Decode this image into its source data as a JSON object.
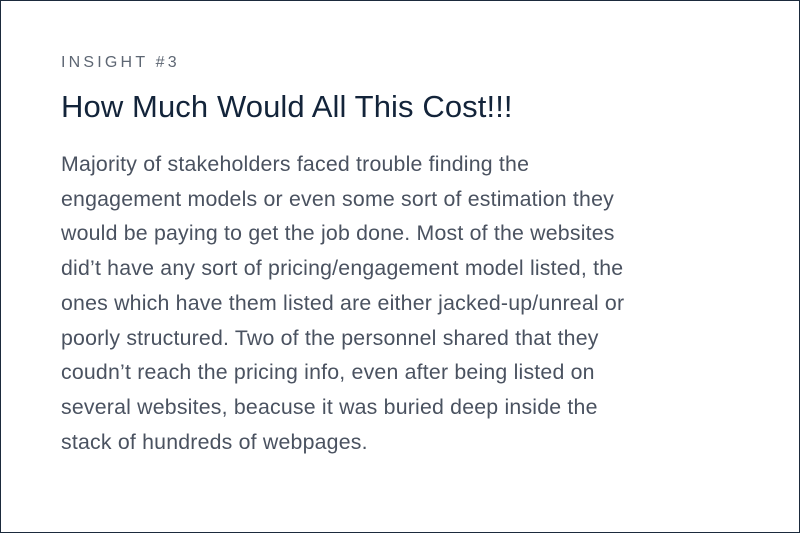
{
  "insight": {
    "label": "INSIGHT #3",
    "title": "How Much Would All This Cost!!!",
    "body_lines": [
      "Majority of stakeholders faced trouble finding the",
      "engagement models or even some sort of estimation they",
      "would be paying to get the job done. Most of the websites",
      "did’t have any sort of pricing/engagement model listed, the",
      "ones which have them listed are either jacked-up/unreal or",
      "poorly structured. Two of the personnel shared that they",
      "coudn’t reach the pricing info, even after being listed on",
      "several websites, beacuse it was buried deep inside the",
      "stack of hundreds of webpages."
    ]
  },
  "colors": {
    "border": "#1b2a3c",
    "title": "#13243a",
    "label": "#5d6673",
    "body": "#4a5260",
    "background": "#ffffff"
  }
}
